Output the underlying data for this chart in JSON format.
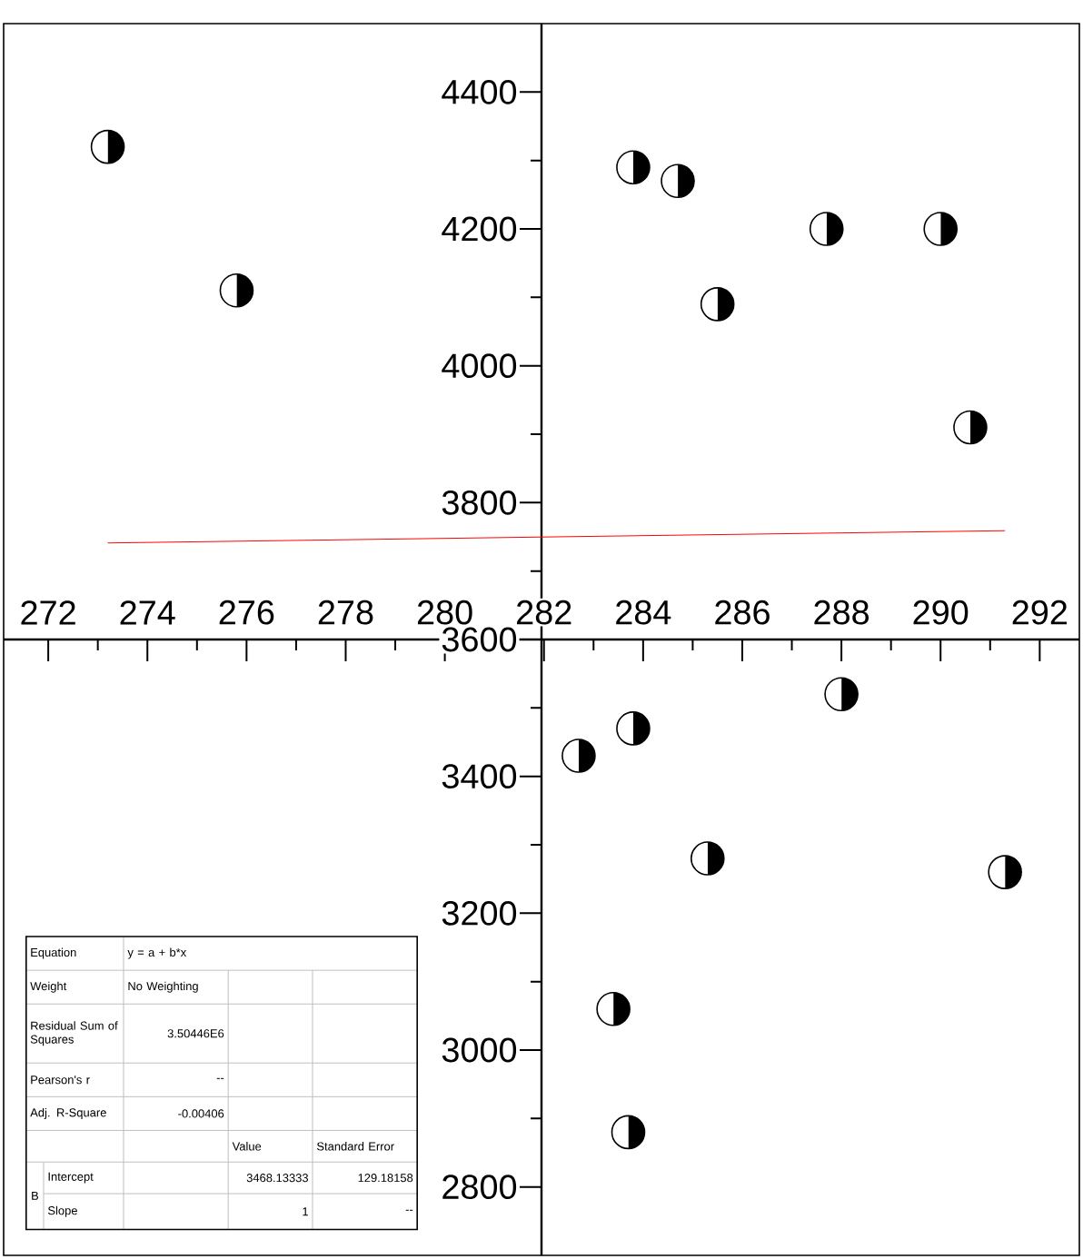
{
  "chart_data": {
    "type": "scatter",
    "series": [
      {
        "color": "#000000",
        "marker": "circle",
        "x": [
          273.2,
          275.8,
          282.7,
          283.4,
          283.7,
          283.8,
          283.8,
          284.7,
          285.3,
          285.5,
          287.7,
          288.0,
          290.0,
          290.6,
          291.3
        ],
        "values": [
          4320,
          4110,
          3430,
          3060,
          2880,
          3470,
          4290,
          4270,
          3280,
          4090,
          4200,
          3520,
          4200,
          3910,
          3260
        ]
      },
      {
        "type": "line",
        "color": "#ff0000",
        "x": [
          273.2,
          291.3
        ],
        "values": [
          3741,
          3759
        ]
      }
    ],
    "xlim": [
      271.1,
      292.8
    ],
    "ylim": [
      2700,
      4500
    ],
    "xticks": [
      272,
      274,
      276,
      278,
      280,
      282,
      284,
      286,
      288,
      290,
      292
    ],
    "yticks": [
      2800,
      3000,
      3200,
      3400,
      3600,
      3800,
      4000,
      4200,
      4400
    ],
    "annotations": [
      "Equation",
      "y = a + b*x",
      "Weight",
      "No Weighting",
      "Residual Sum of Squares",
      "3.50446E6",
      "Pearson's r",
      "--",
      "Adj. R-Square",
      "-0.00406",
      "Value",
      "Standard Error",
      "B",
      "Intercept",
      "3468.13333",
      "129.18158",
      "Slope",
      "1",
      "--"
    ]
  }
}
